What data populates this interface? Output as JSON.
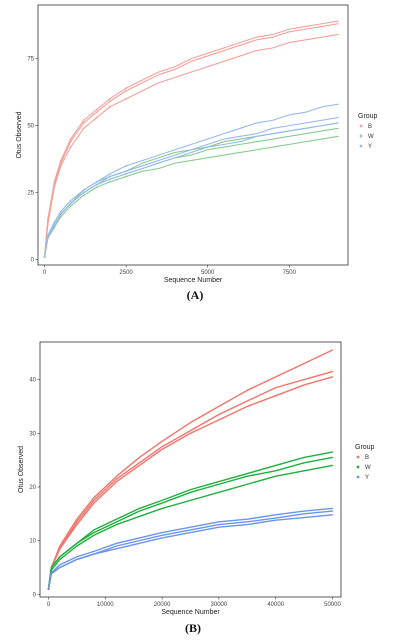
{
  "chart_data": [
    {
      "type": "line",
      "caption": "(A)",
      "xlabel": "Sequence Number",
      "ylabel": "Otus Observed",
      "xlim": [
        -200,
        9300
      ],
      "ylim": [
        -2,
        95
      ],
      "xticks": [
        0,
        2500,
        5000,
        7500
      ],
      "yticks": [
        0,
        25,
        50,
        75
      ],
      "grid": false,
      "markers": true,
      "legend": {
        "title": "Group",
        "placement": "right",
        "entries": [
          "B",
          "W",
          "Y"
        ]
      },
      "colors": {
        "B": "#f4a09a",
        "W": "#86cd8f",
        "Y": "#98b8ef"
      },
      "x": [
        0,
        100,
        300,
        500,
        800,
        1200,
        1600,
        2000,
        2500,
        3000,
        3500,
        4000,
        4500,
        5000,
        5500,
        6000,
        6500,
        7000,
        7500,
        8000,
        8500,
        9000
      ],
      "series": [
        {
          "group": "B",
          "values": [
            1,
            15,
            29,
            37,
            45,
            52,
            56,
            60,
            64,
            67,
            70,
            72,
            75,
            77,
            79,
            81,
            83,
            84,
            86,
            87,
            88,
            89
          ]
        },
        {
          "group": "B",
          "values": [
            1,
            14,
            28,
            36,
            44,
            51,
            55,
            59,
            63,
            66,
            69,
            71,
            74,
            76,
            78,
            80,
            82,
            83,
            85,
            86,
            87,
            88
          ]
        },
        {
          "group": "B",
          "values": [
            1,
            13,
            27,
            35,
            42,
            49,
            53,
            57,
            60,
            63,
            66,
            68,
            70,
            72,
            74,
            76,
            78,
            79,
            81,
            82,
            83,
            84
          ]
        },
        {
          "group": "W",
          "values": [
            1,
            8,
            13,
            17,
            21,
            25,
            28,
            30,
            32,
            34,
            36,
            38,
            39,
            41,
            42,
            43,
            44,
            45,
            46,
            47,
            48,
            49
          ]
        },
        {
          "group": "W",
          "values": [
            1,
            8,
            12,
            16,
            20,
            24,
            27,
            29,
            31,
            33,
            34,
            36,
            37,
            38,
            39,
            40,
            41,
            42,
            43,
            44,
            45,
            46
          ]
        },
        {
          "group": "W",
          "values": [
            1,
            9,
            13,
            17,
            21,
            26,
            29,
            31,
            33,
            36,
            38,
            40,
            41,
            42,
            44,
            45,
            46,
            47,
            48,
            49,
            50,
            51
          ]
        },
        {
          "group": "Y",
          "values": [
            1,
            9,
            14,
            18,
            22,
            26,
            29,
            32,
            35,
            37,
            39,
            41,
            43,
            45,
            47,
            49,
            51,
            52,
            54,
            55,
            57,
            58
          ]
        },
        {
          "group": "Y",
          "values": [
            1,
            9,
            13,
            17,
            21,
            25,
            28,
            31,
            33,
            35,
            37,
            39,
            41,
            43,
            45,
            46,
            47,
            49,
            50,
            51,
            52,
            53
          ]
        },
        {
          "group": "Y",
          "values": [
            1,
            8,
            13,
            17,
            21,
            25,
            28,
            30,
            32,
            34,
            36,
            38,
            40,
            42,
            43,
            44,
            46,
            47,
            48,
            49,
            50,
            51
          ]
        }
      ]
    },
    {
      "type": "line",
      "caption": "(B)",
      "xlabel": "Sequence Number",
      "ylabel": "Otus Observed",
      "xlim": [
        -1500,
        51500
      ],
      "ylim": [
        -0.5,
        47
      ],
      "xticks": [
        0,
        10000,
        20000,
        30000,
        40000,
        50000
      ],
      "yticks": [
        0,
        10,
        20,
        30,
        40
      ],
      "grid": false,
      "markers": false,
      "legend": {
        "title": "Group",
        "placement": "right",
        "entries": [
          "B",
          "W",
          "Y"
        ]
      },
      "colors": {
        "B": "#f2736b",
        "W": "#1fae3f",
        "Y": "#6a95ea"
      },
      "x": [
        0,
        500,
        2000,
        5000,
        8000,
        12000,
        16000,
        20000,
        25000,
        30000,
        35000,
        40000,
        45000,
        50000
      ],
      "series": [
        {
          "group": "B",
          "values": [
            1,
            5,
            9,
            14,
            18,
            22,
            25.5,
            28.5,
            32,
            35,
            38,
            40.5,
            43,
            45.5
          ]
        },
        {
          "group": "B",
          "values": [
            1,
            5,
            8.5,
            13.5,
            17.5,
            21.5,
            24.5,
            27.5,
            30.5,
            33.5,
            36,
            38.5,
            40,
            41.5
          ]
        },
        {
          "group": "B",
          "values": [
            1,
            5,
            8.5,
            13,
            17,
            21,
            24,
            27,
            30,
            32.5,
            35,
            37,
            39,
            40.5
          ]
        },
        {
          "group": "W",
          "values": [
            1,
            5,
            7,
            9.5,
            12,
            14,
            16,
            17.5,
            19.5,
            21,
            22.5,
            24,
            25.5,
            26.5
          ]
        },
        {
          "group": "W",
          "values": [
            1,
            5,
            7,
            9.5,
            11.5,
            13.5,
            15.5,
            17,
            19,
            20.5,
            22,
            23,
            24.5,
            25.5
          ]
        },
        {
          "group": "W",
          "values": [
            1,
            4.5,
            6.5,
            9,
            11,
            13,
            14.5,
            16,
            17.5,
            19,
            20.5,
            22,
            23,
            24
          ]
        },
        {
          "group": "Y",
          "values": [
            1,
            4,
            5.5,
            7,
            8,
            9.5,
            10.5,
            11.5,
            12.5,
            13.5,
            14,
            14.8,
            15.5,
            16
          ]
        },
        {
          "group": "Y",
          "values": [
            1,
            4,
            5,
            6.5,
            7.5,
            9,
            10,
            11,
            12,
            13,
            13.5,
            14.2,
            15,
            15.5
          ]
        },
        {
          "group": "Y",
          "values": [
            1,
            3.8,
            5,
            6.5,
            7.5,
            8.5,
            9.5,
            10.5,
            11.5,
            12.5,
            13,
            13.8,
            14.3,
            14.8
          ]
        }
      ]
    }
  ]
}
